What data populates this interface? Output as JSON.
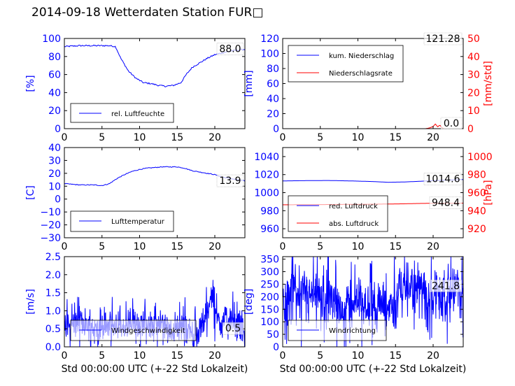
{
  "page_title": "2014-09-18 Wetterdaten Station FUR□",
  "chart_data": [
    {
      "id": "humidity",
      "type": "line",
      "xlim": [
        0,
        24
      ],
      "ylim": [
        0,
        100
      ],
      "xticks": [
        "0",
        "5",
        "10",
        "15",
        "20"
      ],
      "xtick_values": [
        0,
        5,
        10,
        15,
        20
      ],
      "yticks": [
        "0",
        "20",
        "40",
        "60",
        "80",
        "100"
      ],
      "ytick_values": [
        0,
        20,
        40,
        60,
        80,
        100
      ],
      "ylabel": "[%]",
      "ylabel_color": "#0000ff",
      "ytick_color": "#0000ff",
      "value_box": "88.0",
      "value_box_y": 88.0,
      "legend": {
        "placement": "lower-left",
        "entries": [
          {
            "label": "rel. Luftfeuchte",
            "color": "#0000ff"
          }
        ]
      },
      "series": [
        {
          "name": "rel. Luftfeuchte",
          "color": "#0000ff",
          "noise": 0.8,
          "x": [
            0,
            2,
            4,
            6,
            6.8,
            7.5,
            8.5,
            9.5,
            10.5,
            11.5,
            12.5,
            13.5,
            14.5,
            15.5,
            16.2,
            17,
            18,
            19,
            20,
            21,
            22,
            23,
            24
          ],
          "y": [
            91,
            92,
            92,
            92,
            91,
            78,
            64,
            56,
            51,
            50,
            48,
            47,
            48,
            51,
            60,
            68,
            73,
            78,
            82,
            84,
            86,
            87,
            88
          ]
        }
      ]
    },
    {
      "id": "precip",
      "type": "line",
      "xlim": [
        0,
        24
      ],
      "ylim": [
        0,
        120
      ],
      "y2lim": [
        0,
        50
      ],
      "xticks": [
        "0",
        "5",
        "10",
        "15",
        "20"
      ],
      "xtick_values": [
        0,
        5,
        10,
        15,
        20
      ],
      "yticks": [
        "0",
        "20",
        "40",
        "60",
        "80",
        "100",
        "120"
      ],
      "ytick_values": [
        0,
        20,
        40,
        60,
        80,
        100,
        120
      ],
      "y2ticks": [
        "0",
        "10",
        "20",
        "30",
        "40",
        "50"
      ],
      "y2tick_values": [
        0,
        10,
        20,
        30,
        40,
        50
      ],
      "ylabel": "[mm]",
      "ylabel_color": "#0000ff",
      "ytick_color": "#0000ff",
      "y2label": "[mm/std]",
      "y2label_color": "#ff0000",
      "y2tick_color": "#ff0000",
      "value_box": "121.28",
      "value_box_y": 121.28,
      "value_box2": "0.0",
      "value_box2_y": 0.0,
      "legend": {
        "placement": "upper-left",
        "entries": [
          {
            "label": "kum. Niederschlag",
            "color": "#0000ff"
          },
          {
            "label": "Niederschlagsrate",
            "color": "#ff0000"
          }
        ]
      },
      "series": [
        {
          "name": "kum. Niederschlag",
          "color": "#0000ff",
          "noise": 0,
          "x": [
            0,
            24
          ],
          "y": [
            121.28,
            121.28
          ]
        },
        {
          "name": "Niederschlagsrate",
          "color": "#ff0000",
          "axis": "y2",
          "noise": 0,
          "x": [
            0,
            19,
            19.5,
            20,
            20.3,
            20.6,
            20.9,
            21.2,
            21.5,
            22,
            24
          ],
          "y": [
            0,
            0,
            0.4,
            1.2,
            2.6,
            1.0,
            2.0,
            0.4,
            0,
            0,
            0
          ]
        }
      ]
    },
    {
      "id": "temp",
      "type": "line",
      "xlim": [
        0,
        24
      ],
      "ylim": [
        -30,
        40
      ],
      "xticks": [
        "0",
        "5",
        "10",
        "15",
        "20"
      ],
      "xtick_values": [
        0,
        5,
        10,
        15,
        20
      ],
      "yticks": [
        "−30",
        "−20",
        "−10",
        "0",
        "10",
        "20",
        "30",
        "40"
      ],
      "ytick_values": [
        -30,
        -20,
        -10,
        0,
        10,
        20,
        30,
        40
      ],
      "ylabel": "[C]",
      "ylabel_color": "#0000ff",
      "ytick_color": "#0000ff",
      "value_box": "13.9",
      "value_box_y": 13.9,
      "legend": {
        "placement": "lower-left",
        "entries": [
          {
            "label": "Lufttemperatur",
            "color": "#0000ff"
          }
        ]
      },
      "series": [
        {
          "name": "Lufttemperatur",
          "color": "#0000ff",
          "noise": 0.3,
          "x": [
            0,
            2,
            4,
            5,
            6,
            7,
            8,
            9,
            10,
            11,
            12,
            13,
            14,
            15,
            16,
            17,
            18,
            19,
            20,
            21,
            22,
            23,
            24
          ],
          "y": [
            12,
            11,
            11,
            10.5,
            12,
            16,
            19,
            21.5,
            23,
            24,
            24.5,
            25,
            25,
            25,
            24,
            22,
            21,
            20,
            19,
            17,
            16,
            15,
            14
          ]
        }
      ]
    },
    {
      "id": "pressure",
      "type": "line",
      "xlim": [
        0,
        24
      ],
      "ylim": [
        950,
        1050
      ],
      "y2lim": [
        910,
        1010
      ],
      "xticks": [
        "0",
        "5",
        "10",
        "15",
        "20"
      ],
      "xtick_values": [
        0,
        5,
        10,
        15,
        20
      ],
      "yticks": [
        "960",
        "980",
        "1000",
        "1020",
        "1040"
      ],
      "ytick_values": [
        960,
        980,
        1000,
        1020,
        1040
      ],
      "y2ticks": [
        "920",
        "940",
        "960",
        "980",
        "1000"
      ],
      "y2tick_values": [
        920,
        940,
        960,
        980,
        1000
      ],
      "ylabel": "",
      "ytick_color": "#0000ff",
      "y2label": "[hPa]",
      "y2label_color": "#ff0000",
      "y2tick_color": "#ff0000",
      "value_box": "1014.6",
      "value_box_y": 1014.6,
      "value_box2": "948.4",
      "value_box2_y": 948.4,
      "value_box2_axis": "y2",
      "legend": {
        "placement": "lower-left",
        "entries": [
          {
            "label": "red. Luftdruck",
            "color": "#0000ff"
          },
          {
            "label": "abs. Luftdruck",
            "color": "#ff0000"
          }
        ]
      },
      "series": [
        {
          "name": "red. Luftdruck",
          "color": "#0000ff",
          "noise": 0,
          "x": [
            0,
            3,
            6,
            9,
            12,
            14,
            16,
            18,
            20,
            22,
            24
          ],
          "y": [
            1013,
            1013.3,
            1013.5,
            1013,
            1012.3,
            1011.5,
            1011.8,
            1012.5,
            1013.3,
            1014,
            1014.6
          ]
        },
        {
          "name": "abs. Luftdruck",
          "color": "#ff0000",
          "axis": "y2",
          "noise": 0,
          "x": [
            0,
            3,
            6,
            9,
            12,
            14,
            16,
            18,
            20,
            22,
            24
          ],
          "y": [
            946.5,
            946.6,
            946.8,
            947,
            947.2,
            947.4,
            947.6,
            948,
            948.2,
            948.3,
            948.4
          ]
        }
      ]
    },
    {
      "id": "windspeed",
      "type": "line",
      "xlim": [
        0,
        24
      ],
      "ylim": [
        0,
        2.5
      ],
      "xticks": [
        "0",
        "5",
        "10",
        "15",
        "20"
      ],
      "xtick_values": [
        0,
        5,
        10,
        15,
        20
      ],
      "yticks": [
        "0.0",
        "0.5",
        "1.0",
        "1.5",
        "2.0",
        "2.5"
      ],
      "ytick_values": [
        0,
        0.5,
        1,
        1.5,
        2,
        2.5
      ],
      "ylabel": "[m/s]",
      "ylabel_color": "#0000ff",
      "ytick_color": "#0000ff",
      "xlabel": "Std 00:00:00 UTC (+-22 Std Lokalzeit)",
      "value_box": "0.5",
      "value_box_y": 0.5,
      "legend": {
        "placement": "lower-left",
        "entries": [
          {
            "label": "Windgeschwindigkeit",
            "color": "#0000ff"
          }
        ]
      },
      "series": [
        {
          "name": "Windgeschwindigkeit",
          "color": "#0000ff",
          "noise": 0.45,
          "samples": 600,
          "x": [
            0,
            2,
            4,
            6,
            8,
            10,
            12,
            14,
            16,
            17,
            18,
            19,
            19.6,
            20,
            21,
            22,
            23,
            24
          ],
          "y": [
            0.6,
            0.7,
            0.5,
            0.6,
            0.5,
            0.7,
            0.6,
            0.5,
            0.6,
            0.3,
            0.4,
            1.0,
            1.5,
            0.9,
            0.7,
            0.8,
            0.6,
            0.5
          ]
        }
      ]
    },
    {
      "id": "winddir",
      "type": "line",
      "xlim": [
        0,
        24
      ],
      "ylim": [
        0,
        360
      ],
      "xticks": [
        "0",
        "5",
        "10",
        "15",
        "20"
      ],
      "xtick_values": [
        0,
        5,
        10,
        15,
        20
      ],
      "yticks": [
        "0",
        "50",
        "100",
        "150",
        "200",
        "250",
        "300",
        "350"
      ],
      "ytick_values": [
        0,
        50,
        100,
        150,
        200,
        250,
        300,
        350
      ],
      "ylabel": "[deg]",
      "ylabel_color": "#0000ff",
      "ytick_color": "#0000ff",
      "xlabel": "Std 00:00:00 UTC (+-22 Std Lokalzeit)",
      "value_box": "241.8",
      "value_box_y": 241.8,
      "legend": {
        "placement": "lower-left",
        "entries": [
          {
            "label": "Windrichtung",
            "color": "#0000ff"
          }
        ]
      },
      "series": [
        {
          "name": "Windrichtung",
          "color": "#0000ff",
          "noise": 110,
          "samples": 600,
          "x": [
            0,
            2,
            4,
            6,
            8,
            10,
            12,
            14,
            16,
            18,
            20,
            22,
            24
          ],
          "y": [
            180,
            220,
            200,
            180,
            150,
            190,
            170,
            150,
            240,
            230,
            220,
            230,
            240
          ]
        }
      ]
    }
  ]
}
